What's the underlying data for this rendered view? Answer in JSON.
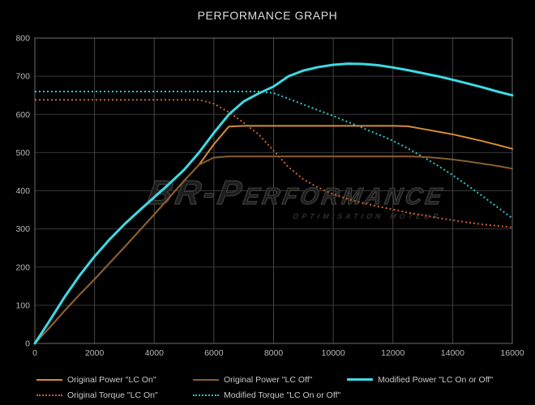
{
  "chart_data": {
    "type": "line",
    "title": "PERFORMANCE GRAPH",
    "xlabel": "",
    "ylabel": "",
    "grid": true,
    "legend_position": "bottom",
    "x_axis": {
      "min": 0,
      "max": 16000,
      "ticks": [
        0,
        2000,
        4000,
        6000,
        8000,
        10000,
        12000,
        14000,
        16000
      ]
    },
    "y_axis": {
      "min": 0,
      "max": 800,
      "ticks": [
        0,
        100,
        200,
        300,
        400,
        500,
        600,
        700,
        800
      ]
    },
    "x": [
      0,
      500,
      1000,
      1500,
      2000,
      2500,
      3000,
      3500,
      4000,
      4500,
      5000,
      5500,
      6000,
      6500,
      7000,
      7500,
      8000,
      8500,
      9000,
      9500,
      10000,
      10500,
      11000,
      11500,
      12000,
      12500,
      13000,
      13500,
      14000,
      14500,
      15000,
      15500,
      16000
    ],
    "series": [
      {
        "name": "Original Power \"LC On\"",
        "color": "#d38d35",
        "line": "solid",
        "width": 2,
        "values": [
          0,
          42,
          86,
          128,
          168,
          210,
          252,
          295,
          338,
          382,
          426,
          468,
          522,
          568,
          570,
          570,
          570,
          570,
          570,
          570,
          570,
          570,
          570,
          570,
          570,
          569,
          562,
          555,
          548,
          539,
          530,
          520,
          510
        ]
      },
      {
        "name": "Original Power \"LC Off\"",
        "color": "#8a5d2e",
        "line": "solid",
        "width": 2,
        "values": [
          0,
          42,
          86,
          128,
          168,
          210,
          252,
          295,
          338,
          382,
          426,
          468,
          487,
          490,
          490,
          490,
          490,
          490,
          490,
          490,
          490,
          490,
          490,
          490,
          490,
          490,
          489,
          486,
          482,
          477,
          471,
          465,
          458
        ]
      },
      {
        "name": "Modified Power \"LC On or Off\"",
        "color": "#3fd9e4",
        "line": "solid",
        "width": 3,
        "values": [
          0,
          60,
          122,
          178,
          228,
          272,
          312,
          348,
          383,
          418,
          455,
          500,
          552,
          600,
          634,
          655,
          673,
          700,
          715,
          724,
          730,
          733,
          732,
          729,
          723,
          716,
          708,
          700,
          691,
          681,
          671,
          660,
          650
        ]
      },
      {
        "name": "Original Torque \"LC On\"",
        "color": "#c96233",
        "line": "dotted",
        "width": 2,
        "values": [
          638,
          638,
          638,
          638,
          638,
          638,
          638,
          638,
          638,
          638,
          638,
          638,
          628,
          606,
          578,
          548,
          505,
          462,
          430,
          408,
          391,
          378,
          368,
          359,
          351,
          343,
          336,
          329,
          323,
          317,
          312,
          308,
          304
        ]
      },
      {
        "name": "Modified Torque \"LC On or Off\"",
        "color": "#2cc5c8",
        "line": "dotted",
        "width": 2,
        "values": [
          660,
          660,
          660,
          660,
          660,
          660,
          660,
          660,
          660,
          660,
          660,
          660,
          660,
          660,
          660,
          660,
          656,
          641,
          626,
          611,
          596,
          580,
          564,
          548,
          531,
          511,
          489,
          466,
          441,
          414,
          386,
          357,
          328
        ]
      }
    ],
    "legend_rows": [
      [
        0,
        1,
        2
      ],
      [
        3,
        4
      ]
    ],
    "draw_order": [
      3,
      4,
      0,
      1,
      2
    ]
  },
  "watermark": {
    "line1": "BR-Performance",
    "line2": "optimisation moteur"
  },
  "colors": {
    "background": "#000000",
    "plot_border": "#6e6e6e",
    "grid_vertical": "#454545",
    "grid_horizontal": "#383838",
    "title_text": "#dcdcdc",
    "tick_text": "#b8b8b8",
    "legend_text": "#c8c8c8"
  }
}
